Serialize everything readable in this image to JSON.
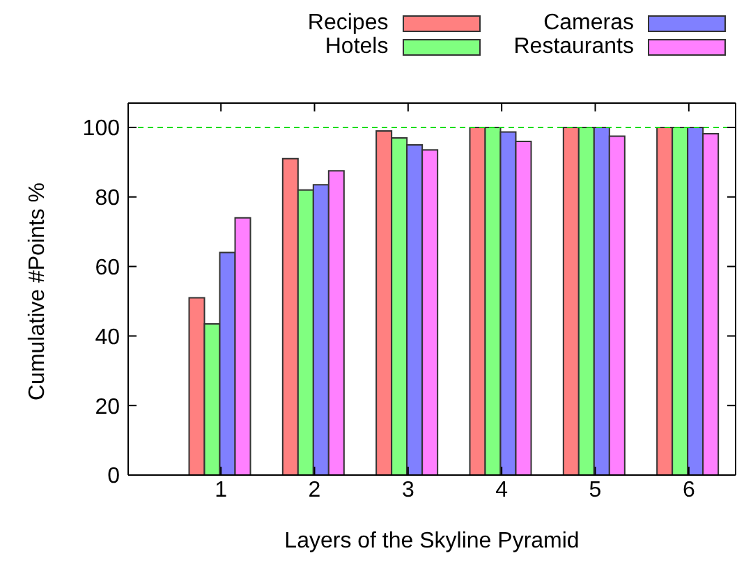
{
  "chart_data": {
    "type": "bar",
    "xlabel": "Layers of the Skyline Pyramid",
    "ylabel": "Cumulative #Points %",
    "categories": [
      "1",
      "2",
      "3",
      "4",
      "5",
      "6"
    ],
    "series": [
      {
        "name": "Recipes",
        "color": "#ff8080",
        "values": [
          51,
          91,
          99,
          100,
          100,
          100
        ]
      },
      {
        "name": "Hotels",
        "color": "#80ff80",
        "values": [
          43.5,
          82,
          97,
          100,
          100,
          100
        ]
      },
      {
        "name": "Cameras",
        "color": "#8080ff",
        "values": [
          64,
          83.5,
          95,
          98.7,
          100,
          100
        ]
      },
      {
        "name": "Restaurants",
        "color": "#ff80ff",
        "values": [
          74,
          87.5,
          93.5,
          96,
          97.5,
          98.2
        ]
      }
    ],
    "ylim": [
      0,
      107
    ],
    "yticks": [
      0,
      20,
      40,
      60,
      80,
      100
    ],
    "ref_lines": [
      {
        "axis": "y",
        "value": 100,
        "color": "#00dd00",
        "line_style": "dashed"
      }
    ],
    "legend": "top right",
    "grid": false
  }
}
